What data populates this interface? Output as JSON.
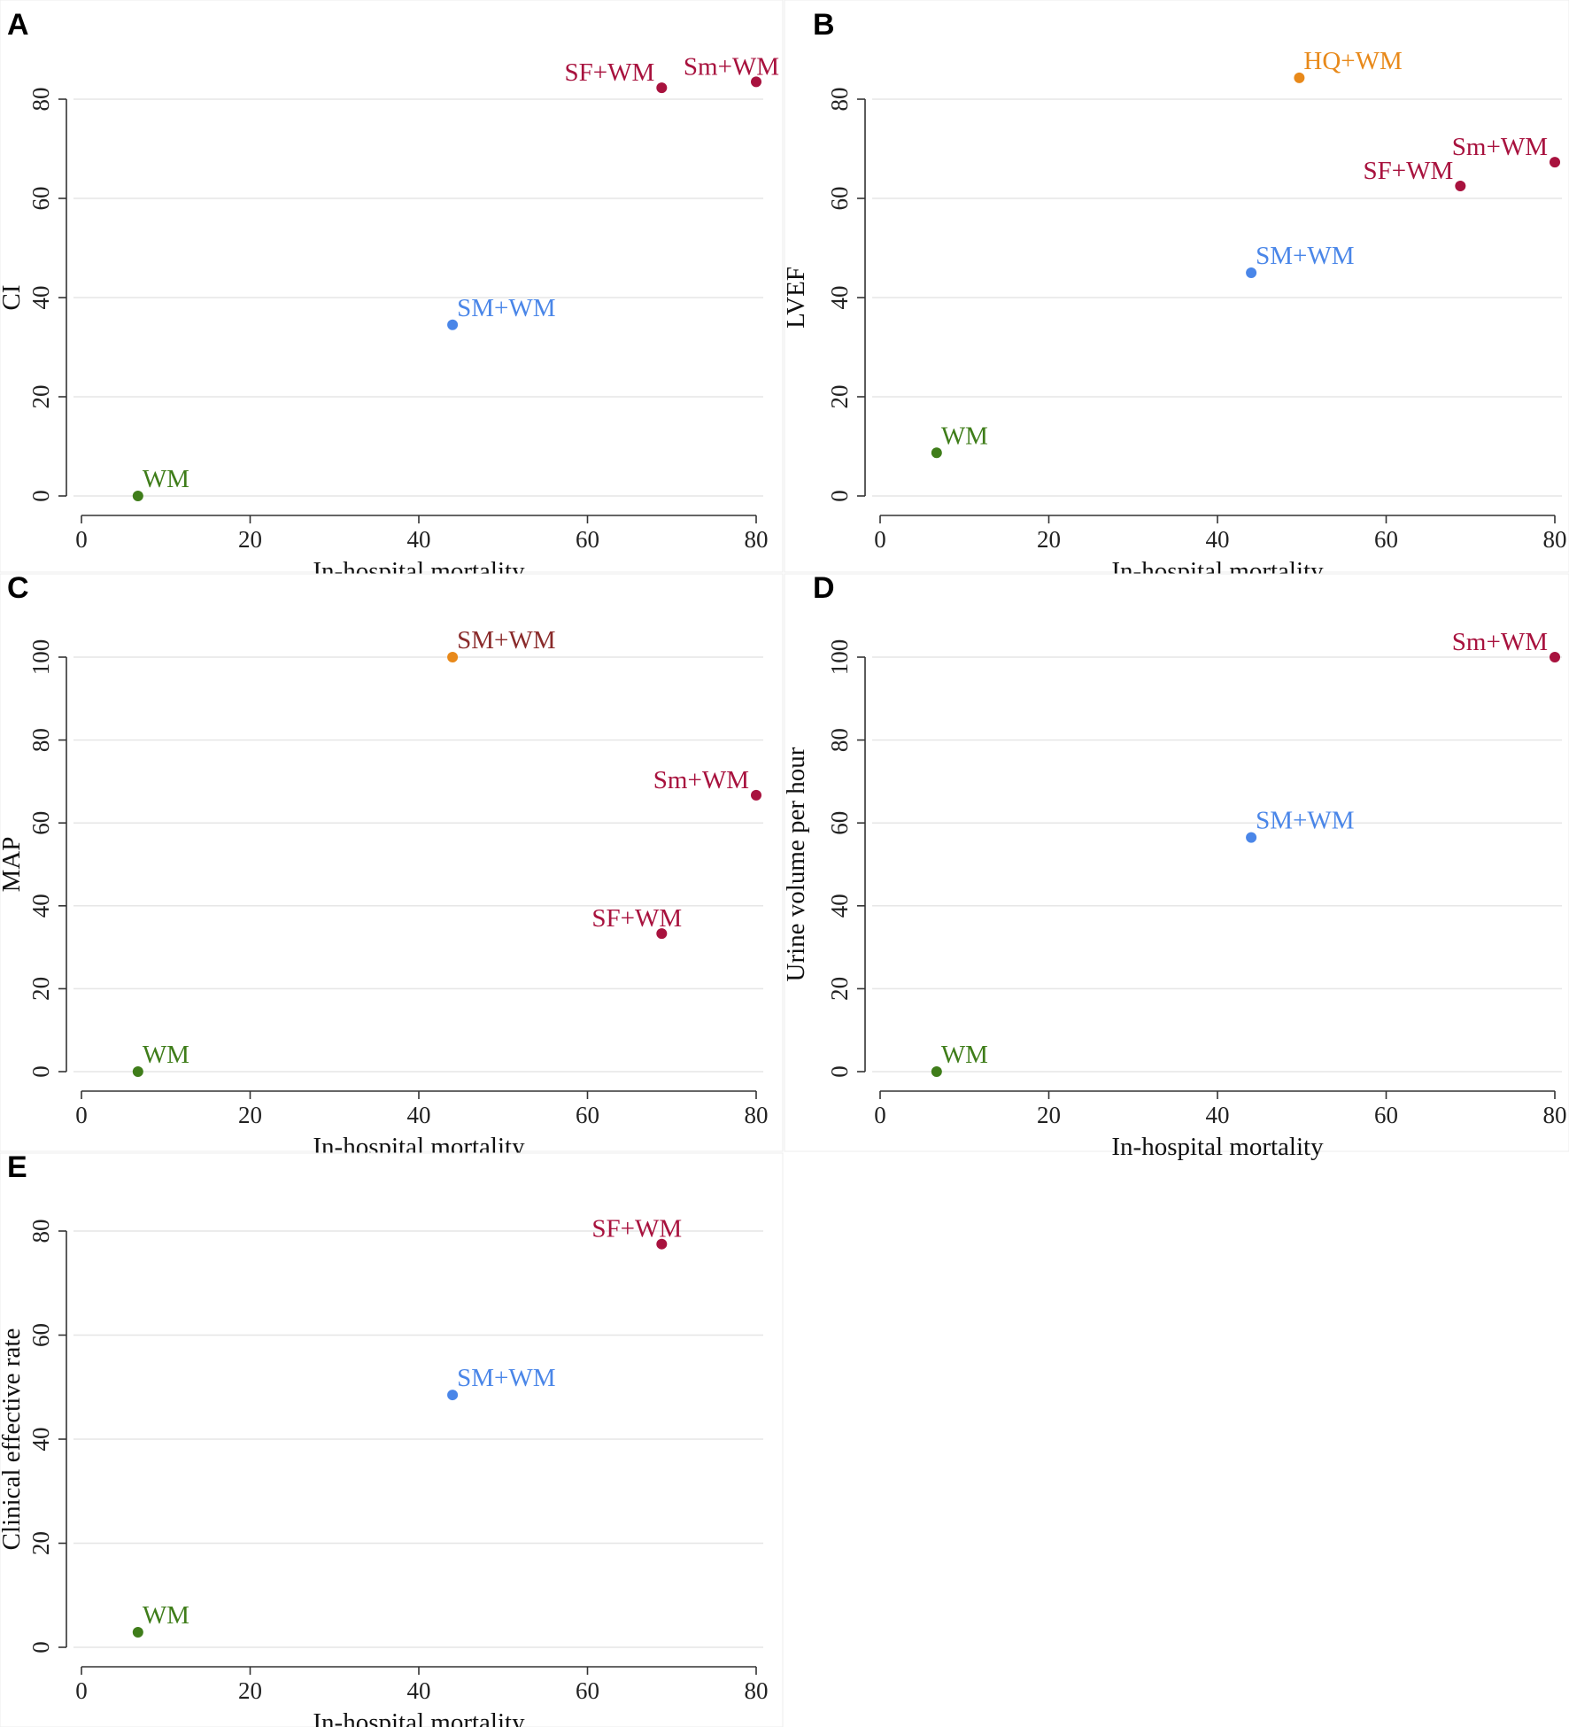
{
  "colors": {
    "red": "#a8123e",
    "blue": "#4a86e8",
    "green": "#3f7d1a",
    "orange": "#e8891a",
    "brown": "#8a2b2b"
  },
  "chart_data": [
    {
      "type": "scatter",
      "panel": "A",
      "title": "",
      "xlabel": "In-hospital mortality",
      "ylabel": "CI",
      "xlim": [
        0,
        80
      ],
      "ylim": [
        0,
        80
      ],
      "xticks": [
        0,
        20,
        40,
        60,
        80
      ],
      "yticks": [
        0,
        20,
        40,
        60,
        80
      ],
      "grid": true,
      "points": [
        {
          "label": "WM",
          "x": 6.7,
          "y": 0,
          "color": "green",
          "label_color": "green",
          "label_pos": "above-right"
        },
        {
          "label": "SM+WM",
          "x": 44,
          "y": 34.5,
          "color": "blue",
          "label_color": "blue",
          "label_pos": "above-right"
        },
        {
          "label": "SF+WM",
          "x": 68.8,
          "y": 82.3,
          "color": "red",
          "label_color": "red",
          "label_pos": "above-left"
        },
        {
          "label": "Sm+WM",
          "x": 80,
          "y": 83.5,
          "color": "red",
          "label_color": "red",
          "label_pos": "above-center"
        }
      ]
    },
    {
      "type": "scatter",
      "panel": "B",
      "title": "",
      "xlabel": "In-hospital mortality",
      "ylabel": "LVEF",
      "xlim": [
        0,
        80
      ],
      "ylim": [
        0,
        80
      ],
      "xticks": [
        0,
        20,
        40,
        60,
        80
      ],
      "yticks": [
        0,
        20,
        40,
        60,
        80
      ],
      "grid": true,
      "points": [
        {
          "label": "WM",
          "x": 6.7,
          "y": 8.7,
          "color": "green",
          "label_color": "green",
          "label_pos": "above-right"
        },
        {
          "label": "SM+WM",
          "x": 44,
          "y": 45,
          "color": "blue",
          "label_color": "blue",
          "label_pos": "above-right"
        },
        {
          "label": "HQ+WM",
          "x": 49.7,
          "y": 84.3,
          "color": "orange",
          "label_color": "orange",
          "label_pos": "above-right"
        },
        {
          "label": "SF+WM",
          "x": 68.8,
          "y": 62.5,
          "color": "red",
          "label_color": "red",
          "label_pos": "above-left"
        },
        {
          "label": "Sm+WM",
          "x": 80,
          "y": 67.3,
          "color": "red",
          "label_color": "red",
          "label_pos": "above-left"
        }
      ]
    },
    {
      "type": "scatter",
      "panel": "C",
      "title": "",
      "xlabel": "In-hospital mortality",
      "ylabel": "MAP",
      "xlim": [
        0,
        80
      ],
      "ylim": [
        0,
        100
      ],
      "xticks": [
        0,
        20,
        40,
        60,
        80
      ],
      "yticks": [
        0,
        20,
        40,
        60,
        80,
        100
      ],
      "grid": true,
      "points": [
        {
          "label": "WM",
          "x": 6.7,
          "y": 0,
          "color": "green",
          "label_color": "green",
          "label_pos": "above-right"
        },
        {
          "label": "SM+WM",
          "x": 44,
          "y": 100,
          "color": "orange",
          "label_color": "brown",
          "label_pos": "above-right"
        },
        {
          "label": "Sm+WM",
          "x": 80,
          "y": 66.7,
          "color": "red",
          "label_color": "red",
          "label_pos": "above-left"
        },
        {
          "label": "SF+WM",
          "x": 68.8,
          "y": 33.3,
          "color": "red",
          "label_color": "red",
          "label_pos": "above-center"
        }
      ]
    },
    {
      "type": "scatter",
      "panel": "D",
      "title": "",
      "xlabel": "In-hospital mortality",
      "ylabel": "Urine volume per hour",
      "xlim": [
        0,
        80
      ],
      "ylim": [
        0,
        100
      ],
      "xticks": [
        0,
        20,
        40,
        60,
        80
      ],
      "yticks": [
        0,
        20,
        40,
        60,
        80,
        100
      ],
      "grid": true,
      "points": [
        {
          "label": "WM",
          "x": 6.7,
          "y": 0,
          "color": "green",
          "label_color": "green",
          "label_pos": "above-right"
        },
        {
          "label": "SM+WM",
          "x": 44,
          "y": 56.5,
          "color": "blue",
          "label_color": "blue",
          "label_pos": "above-right"
        },
        {
          "label": "Sm+WM",
          "x": 80,
          "y": 100,
          "color": "red",
          "label_color": "red",
          "label_pos": "above-left"
        }
      ]
    },
    {
      "type": "scatter",
      "panel": "E",
      "title": "",
      "xlabel": "In-hospital mortality",
      "ylabel": "Clinical effective rate",
      "xlim": [
        0,
        80
      ],
      "ylim": [
        0,
        80
      ],
      "xticks": [
        0,
        20,
        40,
        60,
        80
      ],
      "yticks": [
        0,
        20,
        40,
        60,
        80
      ],
      "grid": true,
      "points": [
        {
          "label": "WM",
          "x": 6.7,
          "y": 2.9,
          "color": "green",
          "label_color": "green",
          "label_pos": "above-right"
        },
        {
          "label": "SM+WM",
          "x": 44,
          "y": 48.5,
          "color": "blue",
          "label_color": "blue",
          "label_pos": "above-right"
        },
        {
          "label": "SF+WM",
          "x": 68.8,
          "y": 77.5,
          "color": "red",
          "label_color": "red",
          "label_pos": "above-center"
        }
      ]
    }
  ]
}
